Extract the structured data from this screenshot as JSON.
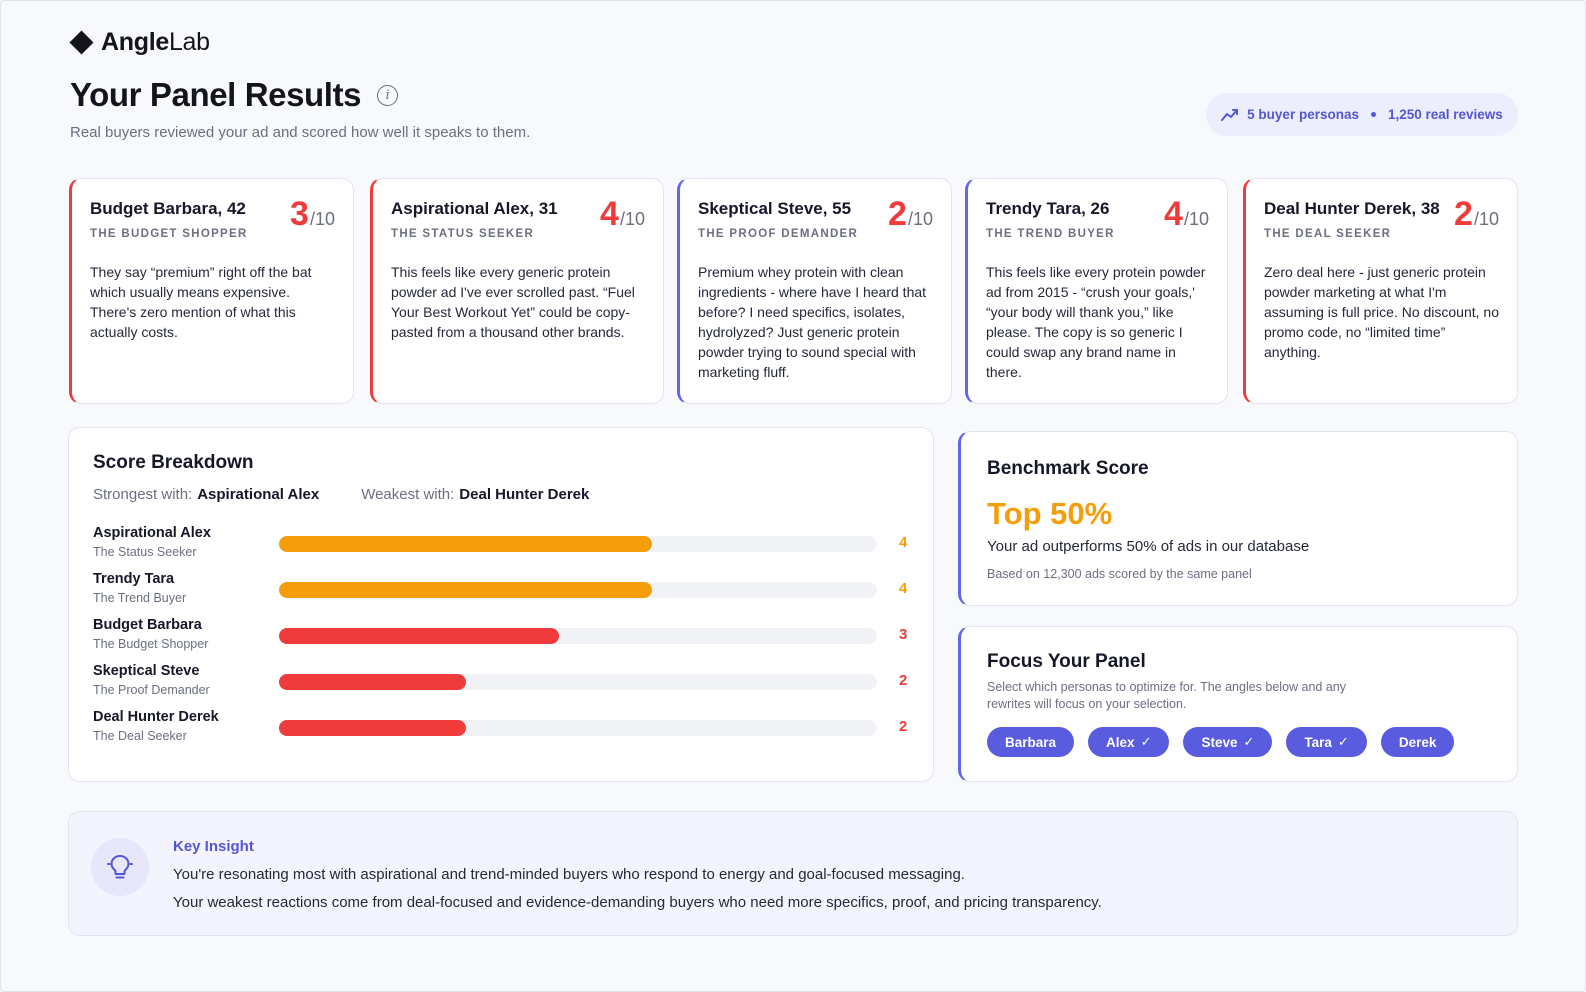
{
  "brand": {
    "name_bold": "Angle",
    "name_light": "Lab"
  },
  "header": {
    "title": "Your Panel Results",
    "subtitle": "Real buyers reviewed your ad and scored how well it speaks to them.",
    "stats": {
      "personas": "5 buyer personas",
      "reviews": "1,250 real reviews"
    }
  },
  "personas": [
    {
      "name": "Budget Barbara, 42",
      "role": "THE BUDGET SHOPPER",
      "score": "3",
      "out_of": "/10",
      "quote": "They say “premium” right off the bat which usually means expensive. There's zero mention of what this actually costs."
    },
    {
      "name": "Aspirational Alex, 31",
      "role": "THE STATUS SEEKER",
      "score": "4",
      "out_of": "/10",
      "quote": "This feels like every generic protein powder ad I've ever scrolled past. “Fuel Your Best Workout Yet” could be copy-pasted from a thousand other brands."
    },
    {
      "name": "Skeptical Steve, 55",
      "role": "THE PROOF DEMANDER",
      "score": "2",
      "out_of": "/10",
      "quote": "Premium whey protein with clean ingredients - where have I heard that before? I need specifics, isolates, hydrolyzed? Just generic protein powder trying to sound special with marketing fluff."
    },
    {
      "name": "Trendy Tara, 26",
      "role": "THE TREND BUYER",
      "score": "4",
      "out_of": "/10",
      "quote": "This feels like every protein powder ad from 2015 - “crush your goals,' “your body will thank you,” like please. The copy is so generic I could swap any brand name in there."
    },
    {
      "name": "Deal Hunter Derek, 38",
      "role": "THE DEAL SEEKER",
      "score": "2",
      "out_of": "/10",
      "quote": "Zero deal here - just generic protein powder marketing at what I'm assuming is full price. No discount, no promo code, no “limited time” anything."
    }
  ],
  "breakdown": {
    "title": "Score Breakdown",
    "strongest_label": "Strongest with:",
    "strongest_value": "Aspirational Alex",
    "weakest_label": "Weakest with:",
    "weakest_value": "Deal Hunter Derek",
    "max": 10,
    "rows": [
      {
        "name": "Aspirational Alex",
        "role": "The Status Seeker",
        "score": 4,
        "score_text": "4",
        "color": "#f59e0b"
      },
      {
        "name": "Trendy Tara",
        "role": "The Trend Buyer",
        "score": 4,
        "score_text": "4",
        "color": "#f59e0b"
      },
      {
        "name": "Budget Barbara",
        "role": "The Budget Shopper",
        "score": 3,
        "score_text": "3",
        "color": "#ef3b3b"
      },
      {
        "name": "Skeptical Steve",
        "role": "The Proof Demander",
        "score": 2,
        "score_text": "2",
        "color": "#ef3b3b"
      },
      {
        "name": "Deal Hunter Derek",
        "role": "The Deal Seeker",
        "score": 2,
        "score_text": "2",
        "color": "#ef3b3b"
      }
    ]
  },
  "benchmark": {
    "title": "Benchmark Score",
    "value": "Top 50%",
    "text": "Your ad outperforms 50% of ads in our database",
    "note": "Based on 12,300 ads scored by the same panel"
  },
  "focus": {
    "title": "Focus Your Panel",
    "description": "Select which personas to optimize for. The angles below and any rewrites will focus on your selection.",
    "chips": [
      {
        "label": "Barbara",
        "selected": false
      },
      {
        "label": "Alex",
        "selected": true
      },
      {
        "label": "Steve",
        "selected": true
      },
      {
        "label": "Tara",
        "selected": true
      },
      {
        "label": "Derek",
        "selected": false
      }
    ]
  },
  "insight": {
    "title": "Key Insight",
    "line1": "You're resonating most with aspirational and trend-minded buyers who respond to energy and goal-focused messaging.",
    "line2": "Your weakest reactions come from deal-focused and evidence-demanding buyers who need more specifics, proof, and pricing transparency."
  },
  "colors": {
    "accent": "#5a5ce0",
    "red": "#ef3b3b",
    "amber": "#f59e0b"
  }
}
